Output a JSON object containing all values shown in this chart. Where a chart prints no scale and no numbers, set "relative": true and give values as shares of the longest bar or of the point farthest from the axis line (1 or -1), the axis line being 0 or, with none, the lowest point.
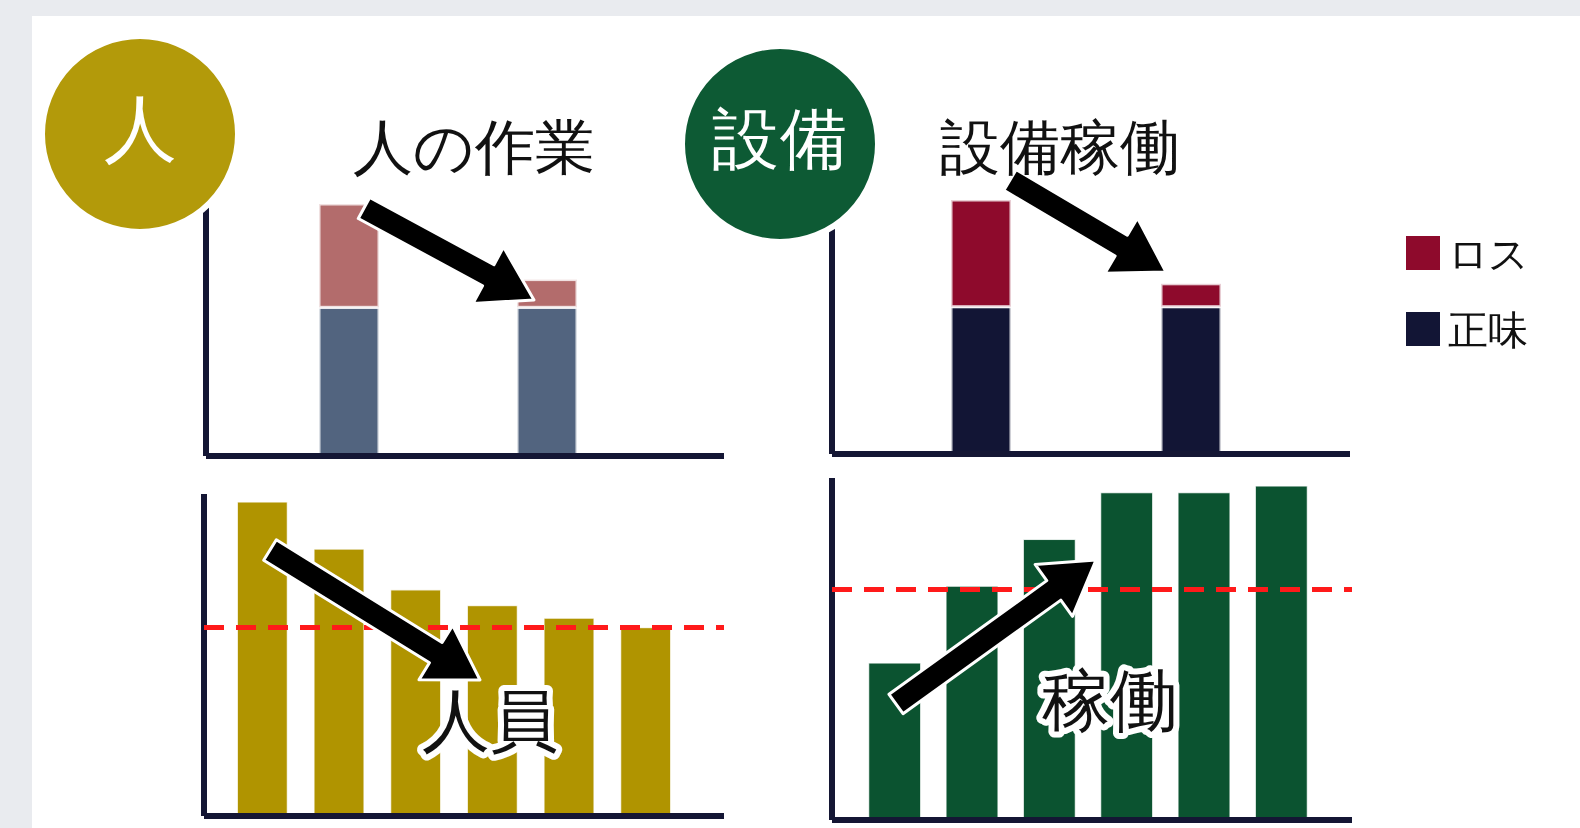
{
  "chart_data": [
    {
      "type": "bar",
      "title": "人の作業",
      "annotations": [
        "人"
      ],
      "relative": true,
      "stacked": true,
      "categories": [
        null,
        null
      ],
      "series": [
        {
          "color": "#52647f",
          "values": [
            0.59,
            0.59
          ]
        },
        {
          "color": "#b36c6c",
          "values": [
            0.41,
            0.11
          ]
        }
      ]
    },
    {
      "type": "bar",
      "title": "設備稼働",
      "annotations": [
        "設備"
      ],
      "relative": true,
      "stacked": true,
      "categories": [
        null,
        null
      ],
      "legend": "right",
      "series": [
        {
          "name": "正味",
          "color": "#121535",
          "values": [
            0.58,
            0.58
          ]
        },
        {
          "name": "ロス",
          "color": "#8e0a2c",
          "values": [
            0.42,
            0.09
          ]
        }
      ]
    },
    {
      "type": "bar",
      "title": "人員",
      "relative": true,
      "categories": [
        null,
        null,
        null,
        null,
        null,
        null
      ],
      "series": [
        {
          "color": "#b09400",
          "values": [
            1,
            0.85,
            0.72,
            0.67,
            0.63,
            0.6
          ]
        }
      ],
      "ref_lines": [
        {
          "axis": "y",
          "value": 0.6,
          "color": "#ff1a1a",
          "line_style": "dashed"
        }
      ]
    },
    {
      "type": "bar",
      "title": "稼働",
      "relative": true,
      "categories": [
        null,
        null,
        null,
        null,
        null,
        null
      ],
      "series": [
        {
          "color": "#0b5330",
          "values": [
            0.47,
            0.7,
            0.84,
            0.98,
            0.98,
            1
          ]
        }
      ],
      "ref_lines": [
        {
          "axis": "y",
          "value": 0.69,
          "color": "#ff1a1a",
          "line_style": "dashed"
        }
      ]
    }
  ]
}
